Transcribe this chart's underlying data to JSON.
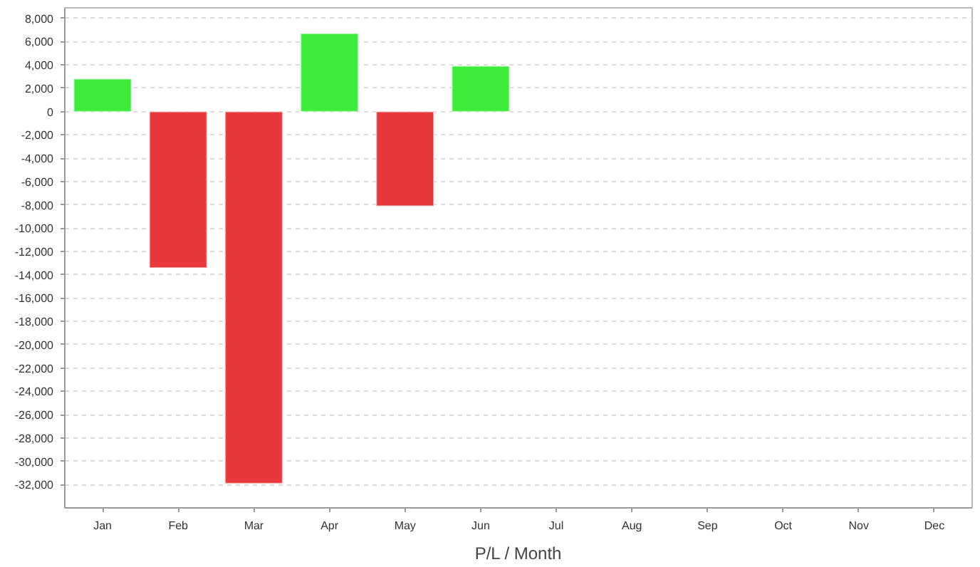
{
  "chart_data": {
    "type": "bar",
    "xlabel": "P/L / Month",
    "categories": [
      "Jan",
      "Feb",
      "Mar",
      "Apr",
      "May",
      "Jun",
      "Jul",
      "Aug",
      "Sep",
      "Oct",
      "Nov",
      "Dec"
    ],
    "values": [
      2800,
      -13400,
      -31900,
      6700,
      -8100,
      3900,
      null,
      null,
      null,
      null,
      null,
      null
    ],
    "colors": [
      "#3dec3a",
      "#e8383b",
      "#e8383b",
      "#3dec3a",
      "#e8383b",
      "#3dec3a",
      "#3dec3a",
      "#3dec3a",
      "#3dec3a",
      "#3dec3a",
      "#3dec3a",
      "#3dec3a"
    ],
    "ylim": [
      -34000,
      8900
    ],
    "yticks": [
      {
        "value": 8000,
        "label": "8,000"
      },
      {
        "value": 6000,
        "label": "6,000"
      },
      {
        "value": 4000,
        "label": "4,000"
      },
      {
        "value": 2000,
        "label": "2,000"
      },
      0,
      {
        "value": -2000,
        "label": "-2,000"
      },
      {
        "value": -4000,
        "label": "-4,000"
      },
      {
        "value": -6000,
        "label": "-6,000"
      },
      {
        "value": -8000,
        "label": "-8,000"
      },
      {
        "value": -10000,
        "label": "-10,000"
      },
      {
        "value": -12000,
        "label": "-12,000"
      },
      {
        "value": -14000,
        "label": "-14,000"
      },
      {
        "value": -16000,
        "label": "-16,000"
      },
      {
        "value": -18000,
        "label": "-18,000"
      },
      {
        "value": -20000,
        "label": "-20,000"
      },
      {
        "value": -22000,
        "label": "-22,000"
      },
      {
        "value": -24000,
        "label": "-24,000"
      },
      {
        "value": -26000,
        "label": "-26,000"
      },
      {
        "value": -28000,
        "label": "-28,000"
      },
      {
        "value": -30000,
        "label": "-30,000"
      },
      {
        "value": -32000,
        "label": "-32,000"
      }
    ],
    "grid": "y"
  }
}
